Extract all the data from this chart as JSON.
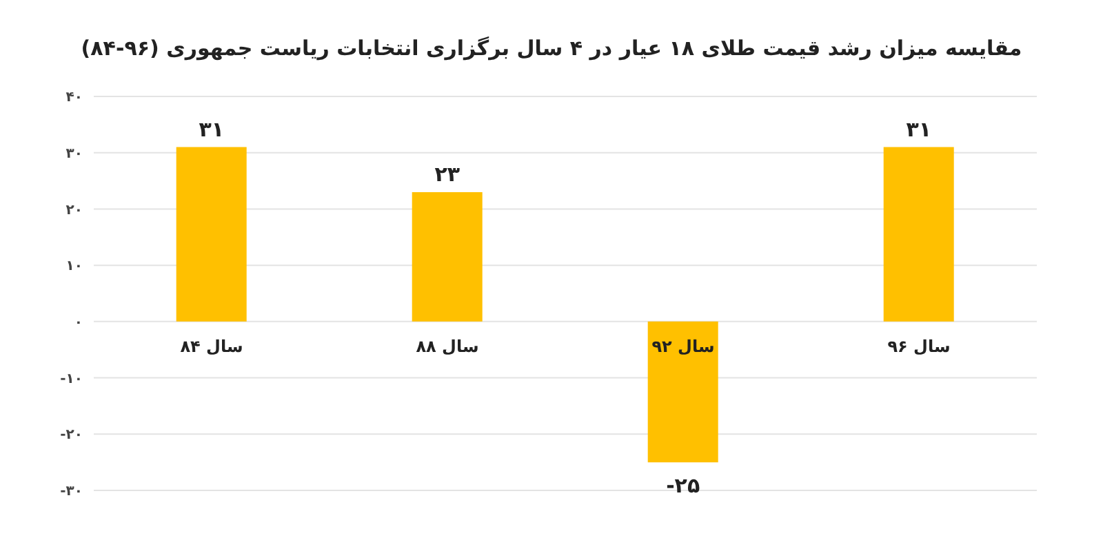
{
  "chart_data": {
    "type": "bar",
    "title": "مقایسه میزان رشد قیمت طلای ۱۸ عیار در ۴ سال برگزاری انتخابات ریاست جمهوری (۹۶-۸۴)",
    "categories": [
      "سال ۸۴",
      "سال ۸۸",
      "سال ۹۲",
      "سال ۹۶"
    ],
    "values": [
      31,
      23,
      -25,
      31
    ],
    "value_labels": [
      "۳۱",
      "۲۳",
      "-۲۵",
      "۳۱"
    ],
    "color": "#ffc000",
    "ylim": [
      -30,
      40
    ],
    "yticks": [
      {
        "value": -30,
        "label": "-۳۰"
      },
      {
        "value": -20,
        "label": "-۲۰"
      },
      {
        "value": -10,
        "label": "-۱۰"
      },
      {
        "value": 0,
        "label": "۰"
      },
      {
        "value": 10,
        "label": "۱۰"
      },
      {
        "value": 20,
        "label": "۲۰"
      },
      {
        "value": 30,
        "label": "۳۰"
      },
      {
        "value": 40,
        "label": "۴۰"
      }
    ],
    "grid": "y"
  }
}
